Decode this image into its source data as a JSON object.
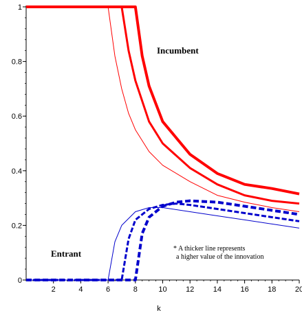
{
  "chart_data": {
    "type": "line",
    "xlabel": "k",
    "ylabel": "",
    "title": "",
    "xlim": [
      0,
      20
    ],
    "ylim": [
      0,
      1
    ],
    "x_ticks": [
      2,
      4,
      6,
      8,
      10,
      12,
      14,
      16,
      18,
      20
    ],
    "x_tick_labels": [
      "2",
      "4",
      "6",
      "8",
      "10",
      "12",
      "14",
      "16",
      "18",
      "20"
    ],
    "y_ticks": [
      0,
      0.2,
      0.4,
      0.6,
      0.8,
      1
    ],
    "y_tick_labels": [
      "0",
      "0.2",
      "0.4",
      "0.6",
      "0.8",
      "1"
    ],
    "grid": false,
    "annotations": {
      "incumbent": "Incumbent",
      "entrant": "Entrant",
      "note_line1": "* A thicker line represents",
      "note_line2": "a higher value of the innovation"
    },
    "colors": {
      "incumbent": "#ff0000",
      "entrant": "#0000cc"
    },
    "series": [
      {
        "group": "incumbent",
        "weight": "thin",
        "style": "solid",
        "x": [
          0,
          6,
          6.5,
          7,
          7.5,
          8,
          9,
          10,
          12,
          14,
          16,
          18,
          20
        ],
        "y": [
          1,
          1,
          0.82,
          0.7,
          0.61,
          0.55,
          0.47,
          0.42,
          0.36,
          0.31,
          0.285,
          0.265,
          0.25
        ]
      },
      {
        "group": "incumbent",
        "weight": "medium",
        "style": "solid",
        "x": [
          0,
          7,
          7.5,
          8,
          9,
          10,
          12,
          14,
          16,
          18,
          20
        ],
        "y": [
          1,
          1,
          0.84,
          0.73,
          0.58,
          0.5,
          0.41,
          0.35,
          0.31,
          0.29,
          0.28
        ]
      },
      {
        "group": "incumbent",
        "weight": "thick",
        "style": "solid",
        "x": [
          0,
          8,
          8.5,
          9,
          10,
          12,
          14,
          16,
          18,
          20
        ],
        "y": [
          1,
          1,
          0.82,
          0.71,
          0.58,
          0.46,
          0.39,
          0.35,
          0.335,
          0.315
        ]
      },
      {
        "group": "entrant",
        "weight": "thin",
        "style": "solid",
        "x": [
          0,
          6,
          6.5,
          7,
          8,
          9,
          10,
          12,
          14,
          16,
          18,
          20
        ],
        "y": [
          0,
          0,
          0.14,
          0.2,
          0.25,
          0.265,
          0.265,
          0.25,
          0.235,
          0.22,
          0.205,
          0.19
        ]
      },
      {
        "group": "entrant",
        "weight": "medium",
        "style": "dashed",
        "x": [
          0,
          7,
          7.5,
          8,
          9,
          10,
          11,
          12,
          14,
          16,
          18,
          20
        ],
        "y": [
          0,
          0,
          0.15,
          0.22,
          0.26,
          0.275,
          0.28,
          0.275,
          0.26,
          0.245,
          0.23,
          0.215
        ]
      },
      {
        "group": "entrant",
        "weight": "thick",
        "style": "dashed",
        "x": [
          0,
          8,
          8.5,
          9,
          10,
          11,
          12,
          14,
          16,
          18,
          20
        ],
        "y": [
          0,
          0,
          0.17,
          0.23,
          0.27,
          0.285,
          0.29,
          0.285,
          0.27,
          0.255,
          0.24
        ]
      }
    ]
  }
}
